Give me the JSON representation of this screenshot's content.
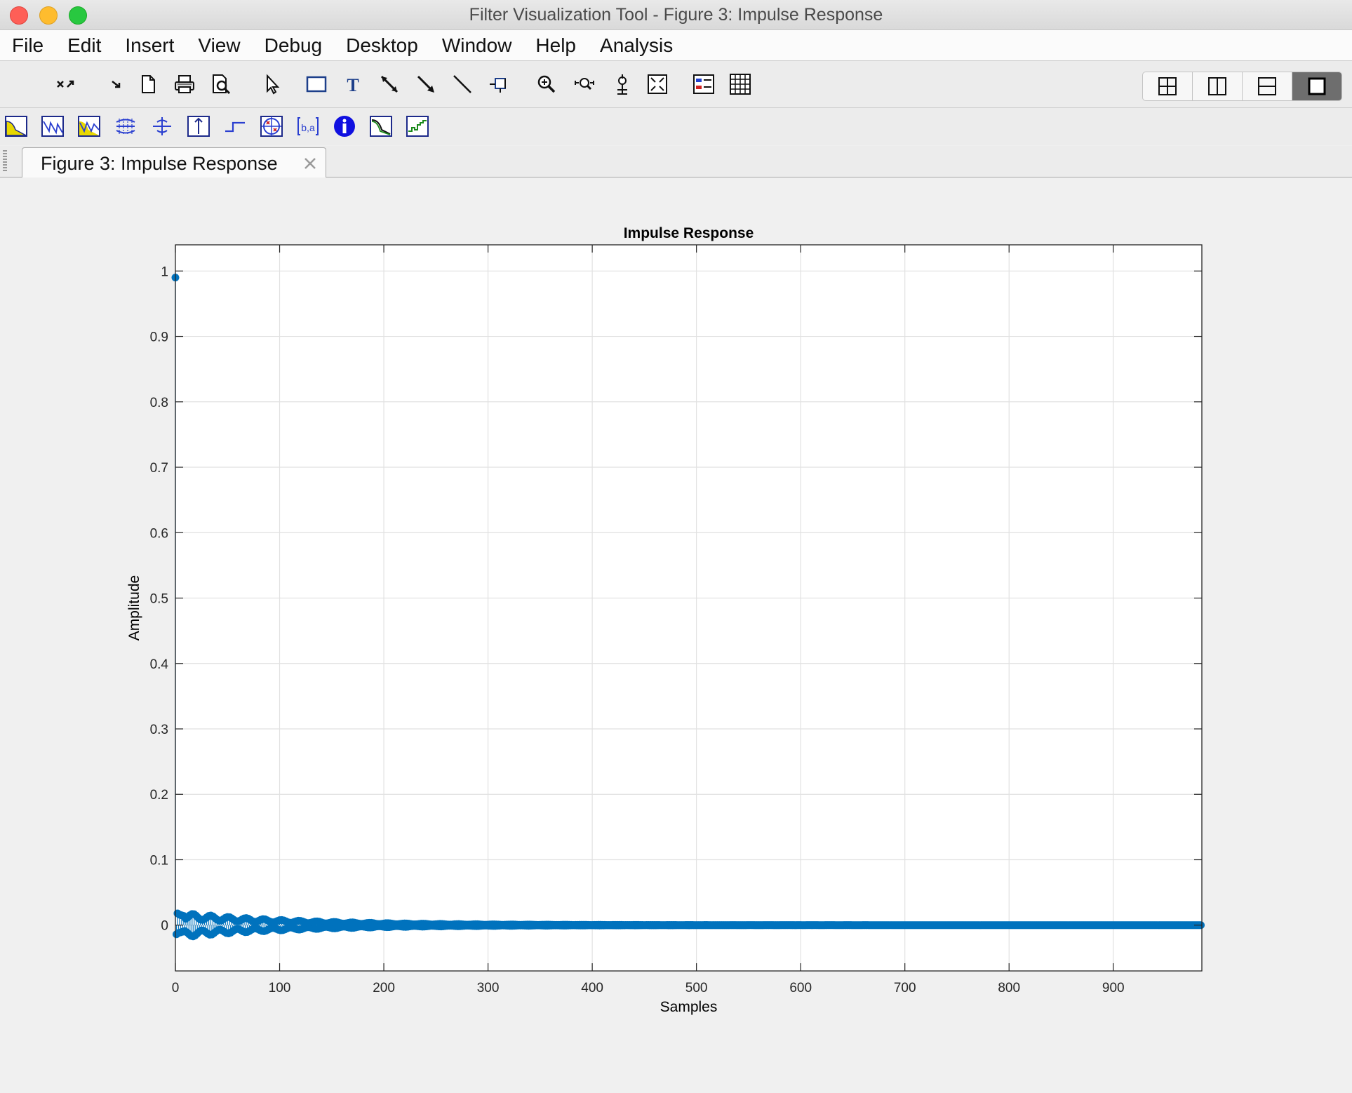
{
  "window": {
    "title": "Filter Visualization Tool - Figure 3: Impulse Response"
  },
  "menu": [
    "File",
    "Edit",
    "Insert",
    "View",
    "Debug",
    "Desktop",
    "Window",
    "Help",
    "Analysis"
  ],
  "toolbar": {
    "icons": [
      "undock-icon",
      "redo-arrow-icon",
      "new-figure-icon",
      "print-icon",
      "print-preview-icon",
      "select-pointer-icon",
      "insert-rectangle-icon",
      "insert-text-icon",
      "insert-arrow-icon",
      "insert-double-arrow-icon",
      "insert-line-icon",
      "pin-icon",
      "zoom-in-icon",
      "pan-icon",
      "data-cursor-icon",
      "restore-view-icon",
      "legend-icon",
      "grid-icon"
    ],
    "layout_options": [
      "tile-2x2",
      "split-vertical",
      "split-horizontal",
      "single-view"
    ],
    "active_layout": "single-view"
  },
  "analysis_toolbar": {
    "icons": [
      "magnitude-response-icon",
      "phase-response-icon",
      "magnitude-phase-icon",
      "group-delay-icon",
      "phase-delay-icon",
      "impulse-response-icon",
      "step-response-icon",
      "pole-zero-icon",
      "filter-coefficients-icon",
      "filter-info-icon",
      "magnitude-estimate-icon",
      "round-off-noise-icon"
    ]
  },
  "tab": {
    "label": "Figure 3: Impulse Response"
  },
  "colors": {
    "series": "#0072bd",
    "grid": "#e1e1e1",
    "axis": "#262626"
  },
  "chart_data": {
    "type": "scatter",
    "style": "stem",
    "title": "Impulse Response",
    "xlabel": "Samples",
    "ylabel": "Amplitude",
    "xlim": [
      0,
      985
    ],
    "ylim": [
      -0.07,
      1.04
    ],
    "xticks": [
      0,
      100,
      200,
      300,
      400,
      500,
      600,
      700,
      800,
      900
    ],
    "yticks": [
      0,
      0.1,
      0.2,
      0.3,
      0.4,
      0.5,
      0.6,
      0.7,
      0.8,
      0.9,
      1
    ],
    "ytick_labels": [
      "0",
      "0.1",
      "0.2",
      "0.3",
      "0.4",
      "0.5",
      "0.6",
      "0.7",
      "0.8",
      "0.9",
      "1"
    ],
    "grid": true,
    "series": [
      {
        "n_samples": 985,
        "x_start": 0,
        "first_value": 0.99,
        "oscillation_initial_amplitude": 0.02,
        "oscillation_decay_samples": 110,
        "values_head": [
          0.99,
          -0.014,
          0.018,
          -0.012,
          0.016,
          -0.011,
          0.015,
          -0.01,
          0.014,
          -0.009
        ],
        "tail_value": 0
      }
    ]
  }
}
